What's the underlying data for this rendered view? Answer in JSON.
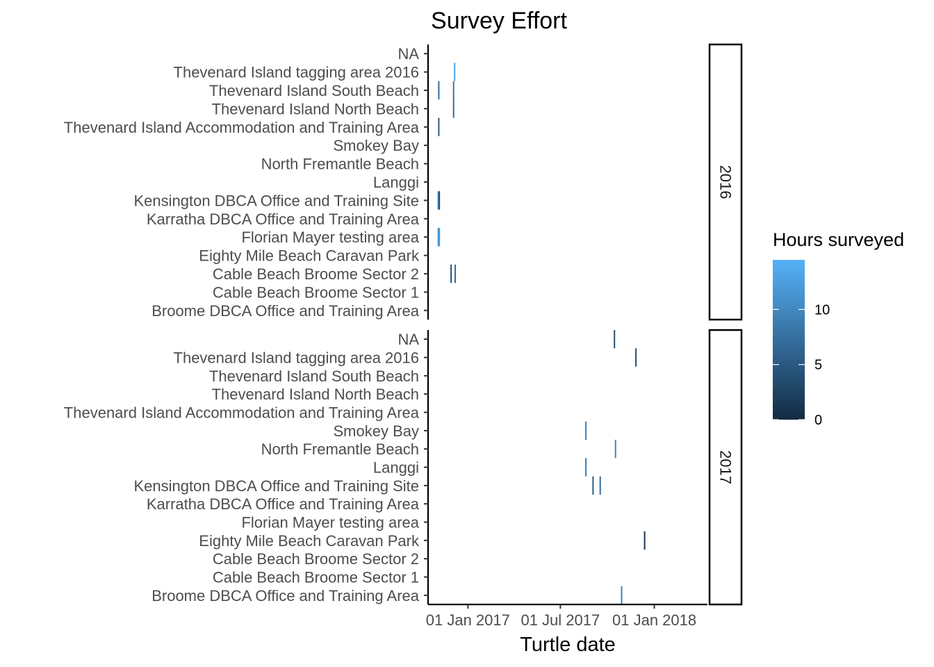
{
  "chart_data": {
    "type": "tile",
    "title": "Survey Effort",
    "xlabel": "Turtle date",
    "ylabel": "",
    "x_ticks": [
      "2017-01-01",
      "2017-07-01",
      "2018-01-01"
    ],
    "x_tick_labels": [
      "01 Jan 2017",
      "01 Jul 2017",
      "01 Jan 2018"
    ],
    "xlim": [
      "2016-10-15",
      "2018-04-15"
    ],
    "sites": [
      "Broome DBCA Office and Training Area",
      "Cable Beach Broome Sector 1",
      "Cable Beach Broome Sector 2",
      "Eighty Mile Beach Caravan Park",
      "Florian Mayer testing area",
      "Karratha DBCA Office and Training Area",
      "Kensington DBCA Office and Training Site",
      "Langgi",
      "North Fremantle Beach",
      "Smokey Bay",
      "Thevenard Island Accommodation and Training Area",
      "Thevenard Island North Beach",
      "Thevenard Island South Beach",
      "Thevenard Island tagging area 2016",
      "NA"
    ],
    "legend": {
      "title": "Hours surveyed",
      "position": "right",
      "breaks": [
        0,
        5,
        10
      ],
      "range": [
        0,
        14.5
      ],
      "low_color": "#132B43",
      "high_color": "#56B1F7"
    },
    "facets": [
      {
        "label": "2016",
        "tiles": [
          {
            "site": "Thevenard Island tagging area 2016",
            "date": "2016-12-06",
            "hours": 13
          },
          {
            "site": "Thevenard Island South Beach",
            "date": "2016-11-05",
            "hours": 7
          },
          {
            "site": "Thevenard Island South Beach",
            "date": "2016-12-04",
            "hours": 8
          },
          {
            "site": "Thevenard Island North Beach",
            "date": "2016-12-04",
            "hours": 7
          },
          {
            "site": "Thevenard Island Accommodation and Training Area",
            "date": "2016-11-05",
            "hours": 5
          },
          {
            "site": "Kensington DBCA Office and Training Site",
            "date": "2016-11-04",
            "hours": 9
          },
          {
            "site": "Kensington DBCA Office and Training Site",
            "date": "2016-11-06",
            "hours": 4
          },
          {
            "site": "Florian Mayer testing area",
            "date": "2016-11-04",
            "hours": 11
          },
          {
            "site": "Florian Mayer testing area",
            "date": "2016-11-06",
            "hours": 12
          },
          {
            "site": "Cable Beach Broome Sector 2",
            "date": "2016-11-29",
            "hours": 4
          },
          {
            "site": "Cable Beach Broome Sector 2",
            "date": "2016-12-07",
            "hours": 7
          }
        ]
      },
      {
        "label": "2017",
        "tiles": [
          {
            "site": "NA",
            "date": "2017-10-15",
            "hours": 4
          },
          {
            "site": "Thevenard Island tagging area 2016",
            "date": "2017-11-26",
            "hours": 4
          },
          {
            "site": "Smokey Bay",
            "date": "2017-08-20",
            "hours": 9
          },
          {
            "site": "North Fremantle Beach",
            "date": "2017-10-17",
            "hours": 10
          },
          {
            "site": "Langgi",
            "date": "2017-08-20",
            "hours": 9
          },
          {
            "site": "Kensington DBCA Office and Training Site",
            "date": "2017-09-03",
            "hours": 5
          },
          {
            "site": "Kensington DBCA Office and Training Site",
            "date": "2017-09-17",
            "hours": 7
          },
          {
            "site": "Eighty Mile Beach Caravan Park",
            "date": "2017-12-13",
            "hours": 1
          },
          {
            "site": "Broome DBCA Office and Training Area",
            "date": "2017-10-29",
            "hours": 9
          }
        ]
      }
    ]
  }
}
